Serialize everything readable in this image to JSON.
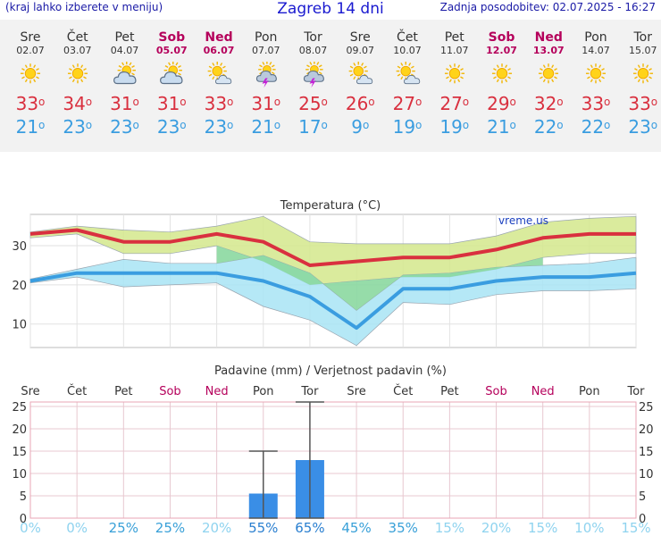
{
  "header": {
    "menu_note": "(kraj lahko izberete v meniju)",
    "title": "Zagreb 14 dni",
    "updated": "Zadnja posodobitev: 02.07.2025 - 16:27"
  },
  "days": [
    {
      "name": "Sre",
      "date": "02.07",
      "weekend": false,
      "icon": "sun-icon",
      "tmax": "33",
      "tmin": "21"
    },
    {
      "name": "Čet",
      "date": "03.07",
      "weekend": false,
      "icon": "sun-icon",
      "tmax": "34",
      "tmin": "23"
    },
    {
      "name": "Pet",
      "date": "04.07",
      "weekend": false,
      "icon": "sun-cloud-icon",
      "tmax": "31",
      "tmin": "23"
    },
    {
      "name": "Sob",
      "date": "05.07",
      "weekend": true,
      "icon": "sun-cloud-icon",
      "tmax": "31",
      "tmin": "23"
    },
    {
      "name": "Ned",
      "date": "06.07",
      "weekend": true,
      "icon": "sun-small-cloud-icon",
      "tmax": "33",
      "tmin": "23"
    },
    {
      "name": "Pon",
      "date": "07.07",
      "weekend": false,
      "icon": "thunderstorm-icon",
      "tmax": "31",
      "tmin": "21"
    },
    {
      "name": "Tor",
      "date": "08.07",
      "weekend": false,
      "icon": "thunderstorm-icon",
      "tmax": "25",
      "tmin": "17"
    },
    {
      "name": "Sre",
      "date": "09.07",
      "weekend": false,
      "icon": "sun-small-cloud-icon",
      "tmax": "26",
      "tmin": "9"
    },
    {
      "name": "Čet",
      "date": "10.07",
      "weekend": false,
      "icon": "sun-small-cloud-icon",
      "tmax": "27",
      "tmin": "19"
    },
    {
      "name": "Pet",
      "date": "11.07",
      "weekend": false,
      "icon": "sun-icon",
      "tmax": "27",
      "tmin": "19"
    },
    {
      "name": "Sob",
      "date": "12.07",
      "weekend": true,
      "icon": "sun-icon",
      "tmax": "29",
      "tmin": "21"
    },
    {
      "name": "Ned",
      "date": "13.07",
      "weekend": true,
      "icon": "sun-icon",
      "tmax": "32",
      "tmin": "22"
    },
    {
      "name": "Pon",
      "date": "14.07",
      "weekend": false,
      "icon": "sun-icon",
      "tmax": "33",
      "tmin": "22"
    },
    {
      "name": "Tor",
      "date": "15.07",
      "weekend": false,
      "icon": "sun-icon",
      "tmax": "33",
      "tmin": "23"
    }
  ],
  "colors": {
    "max": "#d9303f",
    "min": "#3a9de0",
    "weekend": "#b5005b",
    "weekday": "#333333",
    "max_band": "#d4e88c",
    "min_band": "#a8e4f5",
    "overlap_band": "#8bd8a0",
    "bar": "#3a8ee6",
    "prob_strong": "#2a7fd0",
    "prob_light": "#8fd3ef"
  },
  "chart_data": [
    {
      "type": "line",
      "title": "Temperatura (°C)",
      "watermark": "vreme.us",
      "categories": [
        "Sre",
        "Čet",
        "Pet",
        "Sob",
        "Ned",
        "Pon",
        "Tor",
        "Sre",
        "Čet",
        "Pet",
        "Sob",
        "Ned",
        "Pon",
        "Tor"
      ],
      "ylim": [
        4,
        38
      ],
      "yticks": [
        10,
        20,
        30
      ],
      "grid": true,
      "series": [
        {
          "name": "max",
          "values": [
            33,
            34,
            31,
            31,
            33,
            31,
            25,
            26,
            27,
            27,
            29,
            32,
            33,
            33
          ],
          "band_low": [
            32,
            33,
            28,
            28,
            30,
            26,
            20,
            21,
            22,
            22,
            24,
            27,
            28,
            28
          ],
          "band_high": [
            33.5,
            35,
            34,
            33.5,
            35,
            37.5,
            31,
            30.5,
            30.5,
            30.5,
            32.5,
            36,
            37,
            37.5
          ]
        },
        {
          "name": "min",
          "values": [
            21,
            23,
            23,
            23,
            23,
            21,
            17,
            9,
            19,
            19,
            21,
            22,
            22,
            23
          ],
          "band_low": [
            20.5,
            22,
            19.5,
            20,
            20.5,
            14.5,
            11,
            4.5,
            15.5,
            15,
            17.5,
            18.5,
            18.5,
            19
          ],
          "band_high": [
            21.5,
            24,
            26.5,
            25.5,
            25.5,
            27.5,
            23,
            13.5,
            22.5,
            23,
            24.5,
            25,
            25.5,
            27
          ]
        }
      ]
    },
    {
      "type": "bar",
      "title": "Padavine (mm) / Verjetnost padavin (%)",
      "categories": [
        "Sre",
        "Čet",
        "Pet",
        "Sob",
        "Ned",
        "Pon",
        "Tor",
        "Sre",
        "Čet",
        "Pet",
        "Sob",
        "Ned",
        "Pon",
        "Tor"
      ],
      "ylim": [
        0,
        26
      ],
      "yticks": [
        0,
        5,
        10,
        15,
        20,
        25
      ],
      "values": [
        0,
        0,
        0,
        0,
        0,
        5.5,
        13,
        0,
        0,
        0,
        0,
        0,
        0,
        0
      ],
      "error_low": [
        null,
        null,
        null,
        null,
        null,
        0,
        0,
        null,
        null,
        null,
        null,
        null,
        null,
        null
      ],
      "error_high": [
        null,
        null,
        null,
        null,
        null,
        15,
        26,
        null,
        null,
        null,
        null,
        null,
        null,
        null
      ],
      "probability": [
        "0%",
        "0%",
        "25%",
        "25%",
        "20%",
        "55%",
        "65%",
        "45%",
        "35%",
        "15%",
        "20%",
        "15%",
        "10%",
        "15%"
      ]
    }
  ]
}
